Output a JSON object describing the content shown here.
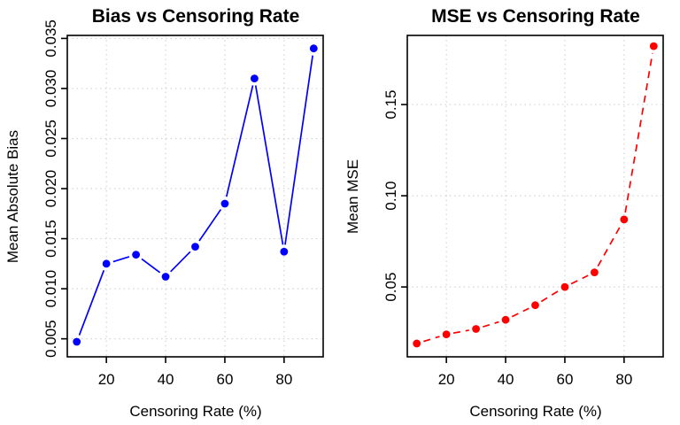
{
  "chart_data": [
    {
      "type": "line",
      "title": "Bias vs Censoring Rate",
      "xlabel": "Censoring Rate (%)",
      "ylabel": "Mean Absolute Bias",
      "x": [
        10,
        20,
        30,
        40,
        50,
        60,
        70,
        80,
        90
      ],
      "values": [
        0.0047,
        0.0125,
        0.0134,
        0.0112,
        0.0142,
        0.0185,
        0.031,
        0.0137,
        0.034
      ],
      "color": "#0000ff",
      "line_style": "solid",
      "marker": "filled-circle",
      "xlim": [
        6.8,
        93.2
      ],
      "ylim": [
        0.0032,
        0.0353
      ],
      "xticks": {
        "values": [
          20,
          40,
          60,
          80
        ],
        "labels": [
          "20",
          "40",
          "60",
          "80"
        ]
      },
      "yticks": {
        "values": [
          0.005,
          0.01,
          0.015,
          0.02,
          0.025,
          0.03,
          0.035
        ],
        "labels": [
          "0.005",
          "0.010",
          "0.015",
          "0.020",
          "0.025",
          "0.030",
          "0.035"
        ]
      },
      "grid": true,
      "grid_color": "#d3d3d3",
      "legend": "none"
    },
    {
      "type": "line",
      "title": "MSE vs Censoring Rate",
      "xlabel": "Censoring Rate (%)",
      "ylabel": "Mean MSE",
      "x": [
        10,
        20,
        30,
        40,
        50,
        60,
        70,
        80,
        90
      ],
      "values": [
        0.019,
        0.024,
        0.027,
        0.032,
        0.04,
        0.05,
        0.058,
        0.087,
        0.182
      ],
      "color": "#ff0000",
      "line_style": "dashed",
      "marker": "filled-circle",
      "xlim": [
        6.8,
        93.2
      ],
      "ylim": [
        0.0117,
        0.1879
      ],
      "xticks": {
        "values": [
          20,
          40,
          60,
          80
        ],
        "labels": [
          "20",
          "40",
          "60",
          "80"
        ]
      },
      "yticks": {
        "values": [
          0.05,
          0.1,
          0.15
        ],
        "labels": [
          "0.05",
          "0.10",
          "0.15"
        ]
      },
      "grid": true,
      "grid_color": "#d3d3d3",
      "legend": "none"
    }
  ]
}
